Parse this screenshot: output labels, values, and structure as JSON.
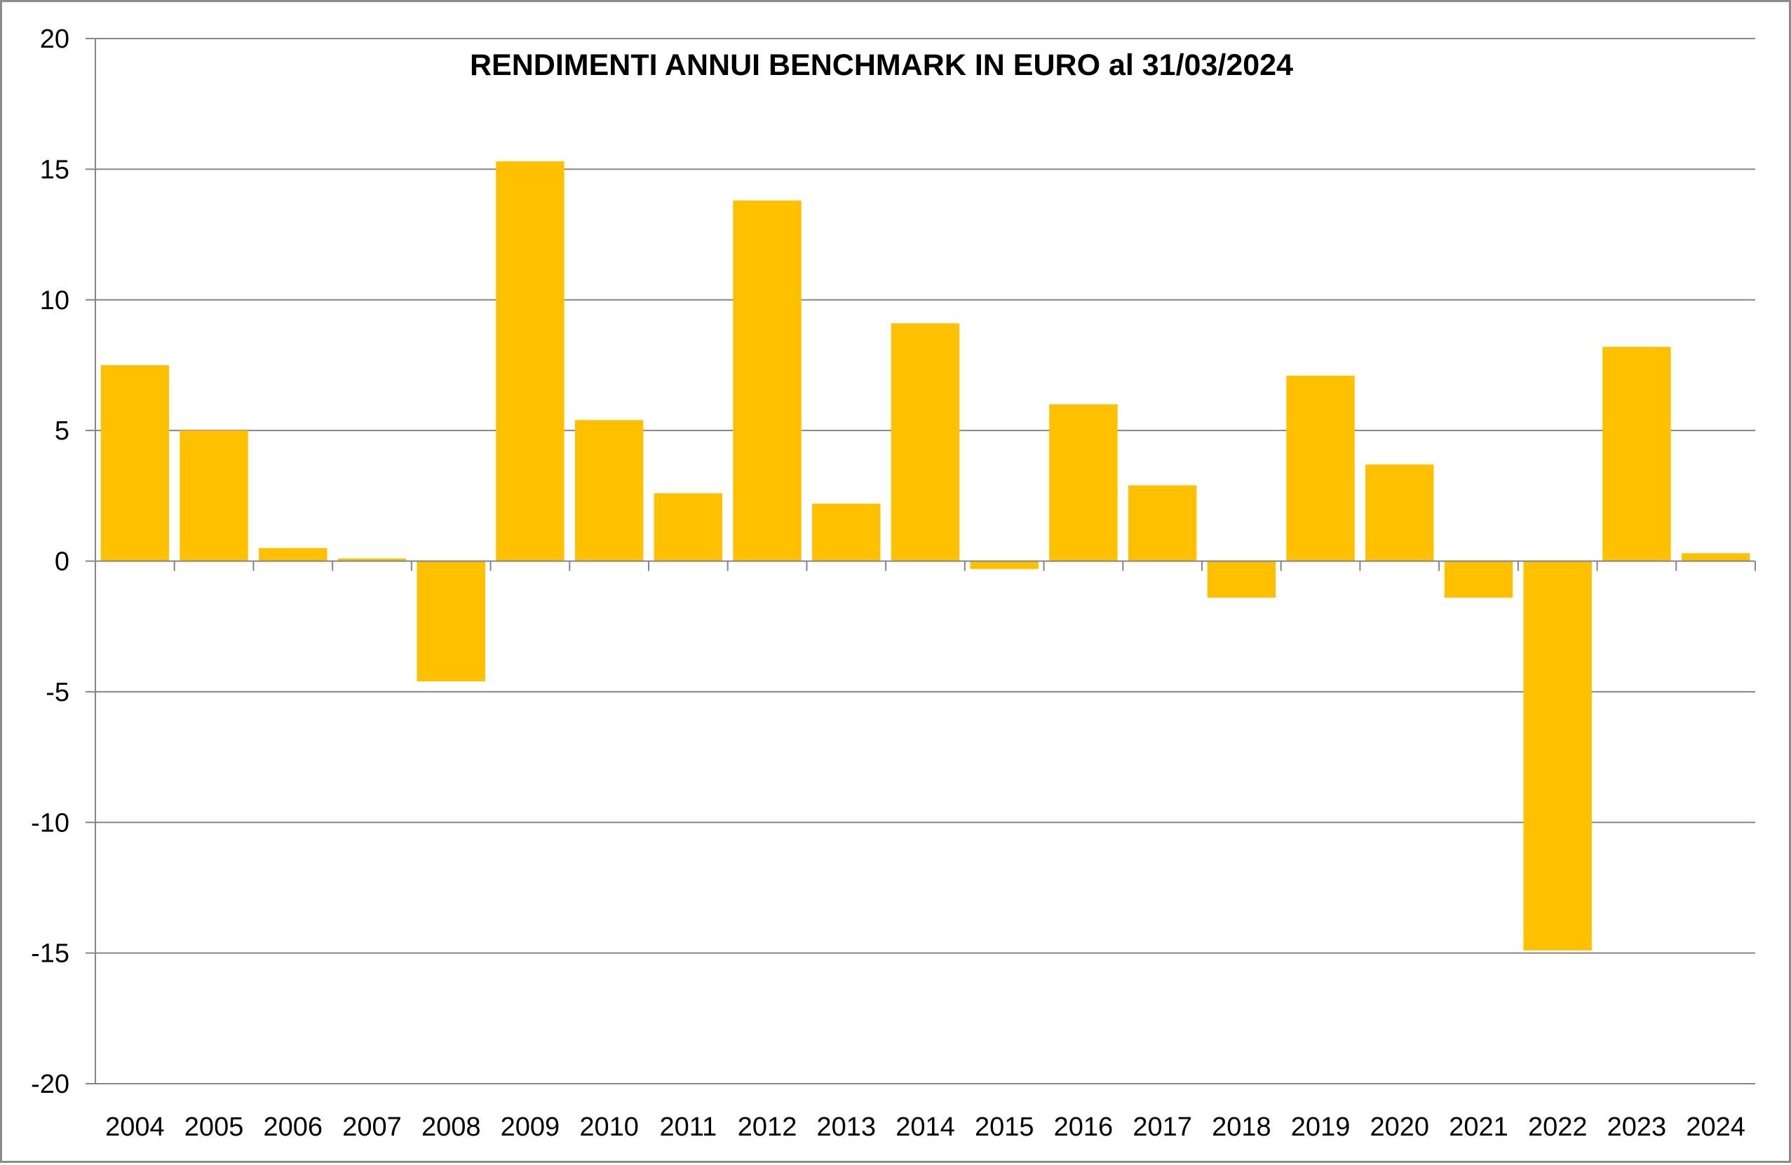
{
  "colors": {
    "bar": "#FFC000",
    "grid": "#868686",
    "axis": "#868686",
    "text": "#000000",
    "border": "#8c8c8c",
    "background": "#ffffff"
  },
  "chart_data": {
    "type": "bar",
    "title": "RENDIMENTI ANNUI BENCHMARK IN EURO al 31/03/2024",
    "xlabel": "",
    "ylabel": "",
    "ylim": [
      -20,
      20
    ],
    "yticks": [
      20,
      15,
      10,
      5,
      0,
      -5,
      -10,
      -15,
      -20
    ],
    "grid": true,
    "legend": "none",
    "categories": [
      "2004",
      "2005",
      "2006",
      "2007",
      "2008",
      "2009",
      "2010",
      "2011",
      "2012",
      "2013",
      "2014",
      "2015",
      "2016",
      "2017",
      "2018",
      "2019",
      "2020",
      "2021",
      "2022",
      "2023",
      "2024"
    ],
    "values": [
      7.5,
      5.0,
      0.5,
      0.1,
      -4.6,
      15.3,
      5.4,
      2.6,
      13.8,
      2.2,
      9.1,
      -0.3,
      6.0,
      2.9,
      -1.4,
      7.1,
      3.7,
      -1.4,
      -14.9,
      8.2,
      0.3
    ]
  }
}
